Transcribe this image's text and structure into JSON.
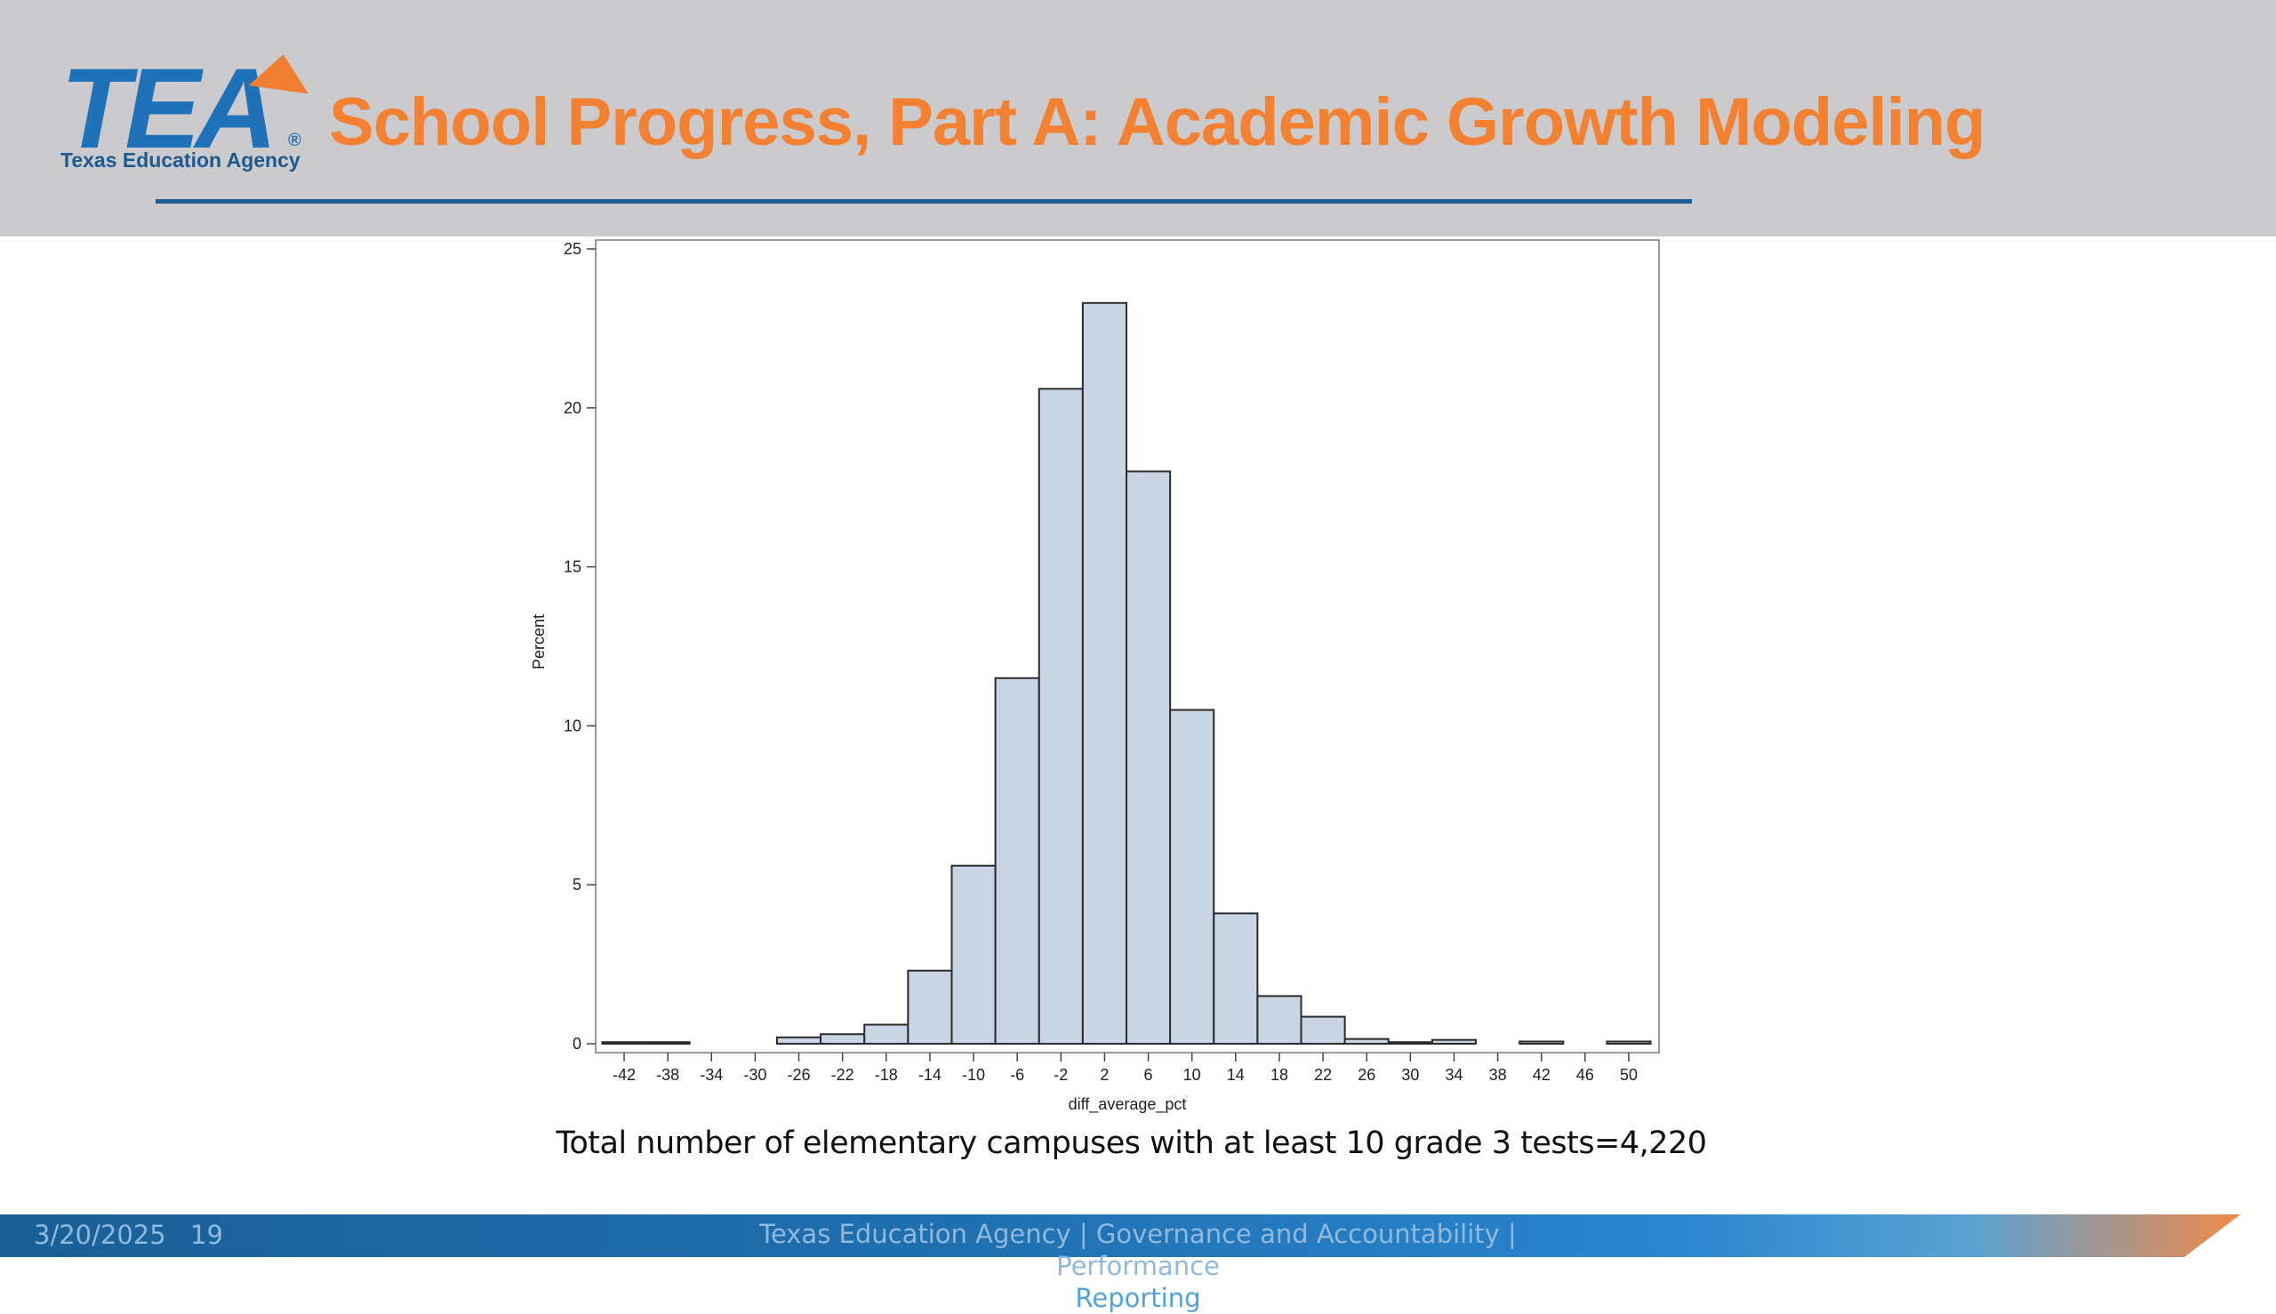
{
  "header": {
    "logo_text": "TEA",
    "logo_subtitle": "Texas Education Agency",
    "title": "School Progress, Part A: Academic Growth Modeling"
  },
  "colors": {
    "header_bg": "#cbcbcd",
    "title": "#f48132",
    "bar_fill": "#c9d4e4",
    "bar_stroke": "#2b2b2b",
    "footer_blue": "#1a5f97",
    "footer_orange": "#f08a4a"
  },
  "chart_data": {
    "type": "bar",
    "xlabel": "diff_average_pct",
    "ylabel": "Percent",
    "ylim": [
      0,
      25
    ],
    "yticks": [
      0,
      5,
      10,
      15,
      20,
      25
    ],
    "xticks": [
      -42,
      -38,
      -34,
      -30,
      -26,
      -22,
      -18,
      -14,
      -10,
      -6,
      -2,
      2,
      6,
      10,
      14,
      18,
      22,
      26,
      30,
      34,
      38,
      42,
      46,
      50
    ],
    "bin_width": 4,
    "bins": [
      {
        "x": -42,
        "value": 0.05
      },
      {
        "x": -38,
        "value": 0.05
      },
      {
        "x": -26,
        "value": 0.2
      },
      {
        "x": -22,
        "value": 0.3
      },
      {
        "x": -18,
        "value": 0.6
      },
      {
        "x": -14,
        "value": 2.3
      },
      {
        "x": -10,
        "value": 5.6
      },
      {
        "x": -6,
        "value": 11.5
      },
      {
        "x": -2,
        "value": 20.6
      },
      {
        "x": 2,
        "value": 23.3
      },
      {
        "x": 6,
        "value": 18.0
      },
      {
        "x": 10,
        "value": 10.5
      },
      {
        "x": 14,
        "value": 4.1
      },
      {
        "x": 18,
        "value": 1.5
      },
      {
        "x": 22,
        "value": 0.85
      },
      {
        "x": 26,
        "value": 0.15
      },
      {
        "x": 30,
        "value": 0.05
      },
      {
        "x": 34,
        "value": 0.12
      },
      {
        "x": 42,
        "value": 0.07
      },
      {
        "x": 50,
        "value": 0.07
      }
    ],
    "grid": false
  },
  "caption": "Total number of elementary campuses with at least 10 grade 3 tests=4,220",
  "footer": {
    "date": "3/20/2025",
    "page": "19",
    "text_line1": "Texas Education Agency | Governance and Accountability | Performance",
    "text_line2": "Reporting"
  }
}
